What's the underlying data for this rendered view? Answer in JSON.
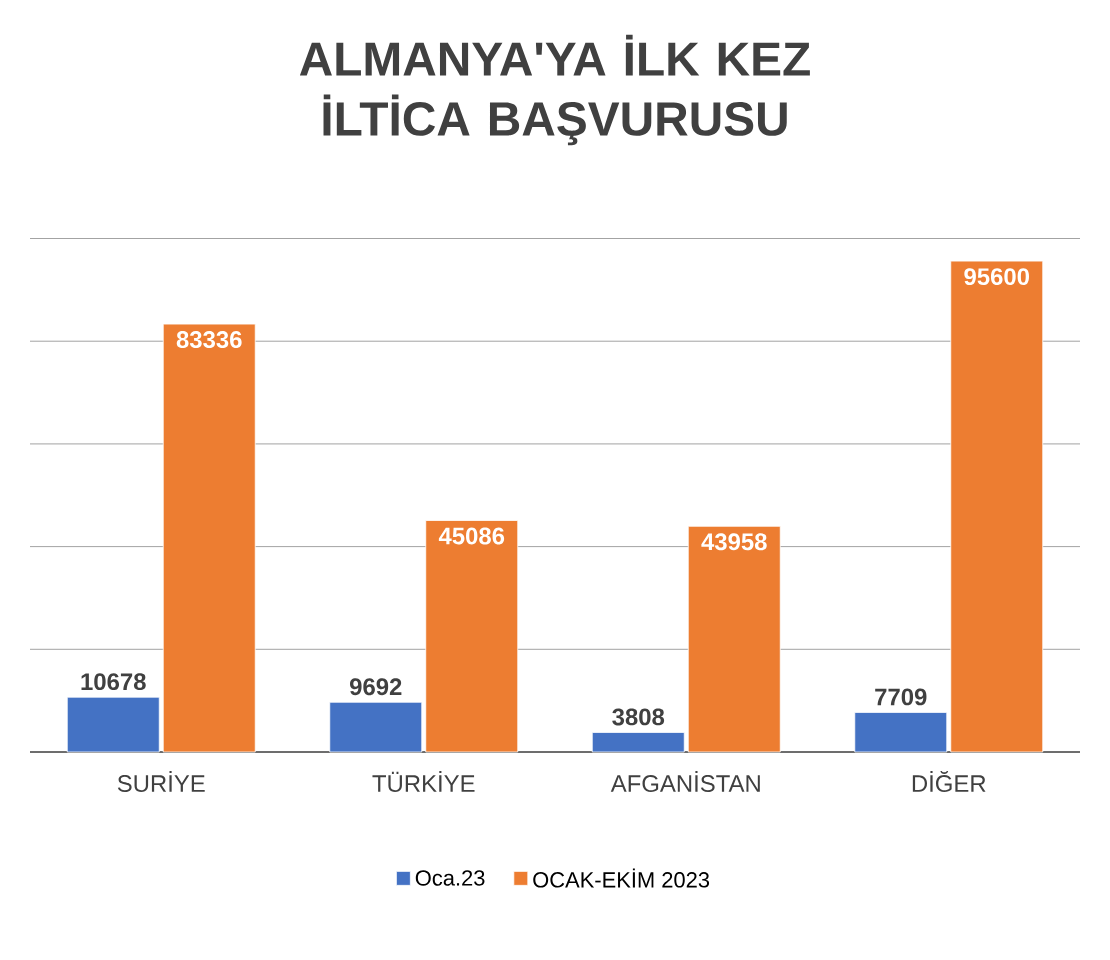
{
  "chart_data": {
    "type": "bar",
    "title": "ALMANYA'YA İLK KEZ İLTİCA BAŞVURUSU",
    "categories": [
      "SURİYE",
      "TÜRKİYE",
      "AFGANİSTAN",
      "DİĞER"
    ],
    "series": [
      {
        "name": "Oca.23",
        "color": "#4472c4",
        "values": [
          10678,
          9692,
          3808,
          7709
        ]
      },
      {
        "name": "OCAK-EKİM 2023",
        "color": "#ed7d31",
        "values": [
          83336,
          45086,
          43958,
          95600
        ]
      }
    ],
    "grid": "y",
    "tick_labels": "x",
    "legend": "bottom",
    "data_labels": true
  }
}
